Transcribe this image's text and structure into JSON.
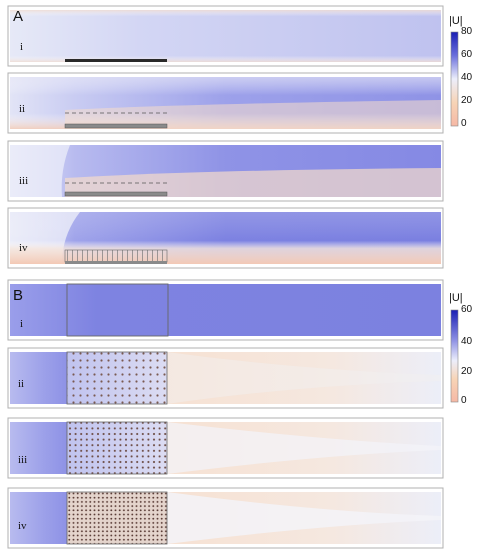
{
  "sections": [
    {
      "label": "A",
      "colorbar": {
        "title": "|U|",
        "ticks": [
          "80",
          "60",
          "40",
          "20",
          "0"
        ],
        "stops": [
          "#1a1fb4",
          "#8e91e4",
          "#eceefb",
          "#f7d4b6",
          "#f6b8a5"
        ]
      },
      "panels": [
        {
          "label": "i",
          "variant": "solid-bar"
        },
        {
          "label": "ii",
          "variant": "dashed-line"
        },
        {
          "label": "iii",
          "variant": "dashed-line"
        },
        {
          "label": "iv",
          "variant": "vertical-lines"
        }
      ]
    },
    {
      "label": "B",
      "colorbar": {
        "title": "|U|",
        "ticks": [
          "60",
          "40",
          "20",
          "0"
        ],
        "stops": [
          "#1a1fb4",
          "#8e91e4",
          "#eceefb",
          "#f7d4b6",
          "#f6b8a5"
        ]
      },
      "panels": [
        {
          "label": "i",
          "variant": "empty-box"
        },
        {
          "label": "ii",
          "variant": "dot-array"
        },
        {
          "label": "iii",
          "variant": "dot-array"
        },
        {
          "label": "iv",
          "variant": "dot-array"
        }
      ]
    }
  ]
}
